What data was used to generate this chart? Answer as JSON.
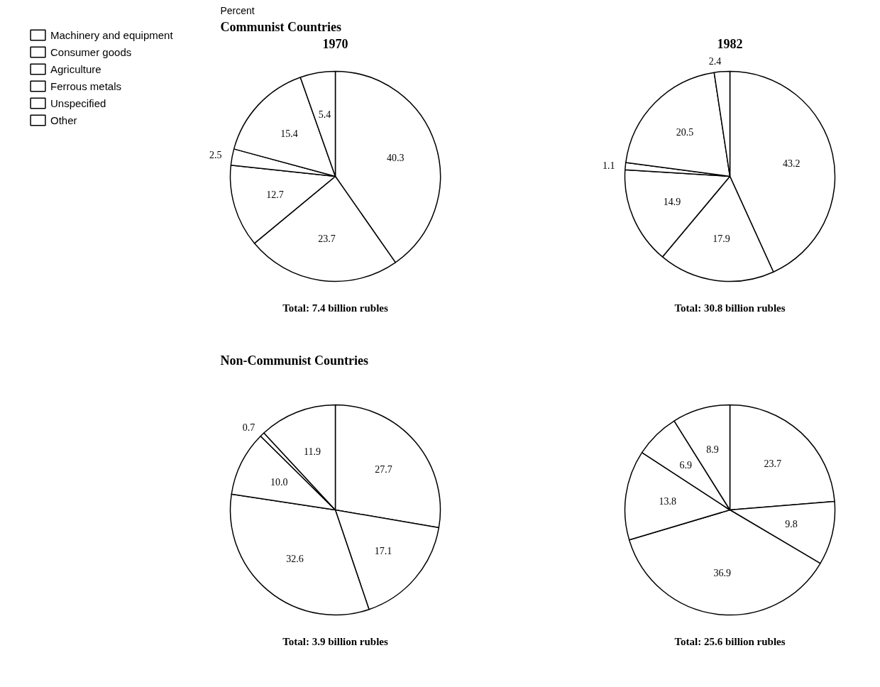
{
  "chart_data": [
    {
      "type": "pie",
      "title": "1970",
      "subtitle": "Communist Countries",
      "annotations": [
        "Percent",
        "Total: 7.4 billion rubles"
      ],
      "categories": [
        "Machinery and equipment",
        "Consumer goods",
        "Agriculture",
        "Ferrous metals",
        "Unspecified",
        "Other"
      ],
      "values": [
        40.3,
        23.7,
        12.7,
        2.5,
        15.4,
        5.4
      ],
      "colors": [
        "#ffffff",
        "#ffffff",
        "#ffffff",
        "#ffffff",
        "#ffffff",
        "#ffffff"
      ],
      "data_labels": true,
      "legend": "left"
    },
    {
      "type": "pie",
      "title": "1982",
      "annotations": [
        "Total: 30.8 billion rubles"
      ],
      "values": [
        43.2,
        17.9,
        14.9,
        1.1,
        20.5,
        2.4
      ],
      "colors": [
        "#ffffff",
        "#ffffff",
        "#ffffff",
        "#ffffff",
        "#ffffff",
        "#ffffff"
      ],
      "data_labels": true
    },
    {
      "type": "pie",
      "subtitle": "Non-Communist Countries",
      "annotations": [
        "Total: 3.9 billion rubles"
      ],
      "values": [
        27.7,
        17.1,
        32.6,
        10.0,
        0.7,
        11.9
      ],
      "value_labels": [
        "27.7",
        "17.1",
        "32.6",
        "10.0",
        "0.7",
        "11.9"
      ],
      "colors": [
        "#ffffff",
        "#ffffff",
        "#ffffff",
        "#ffffff",
        "#ffffff",
        "#ffffff"
      ]
    },
    {
      "type": "pie",
      "annotations": [
        "Total: 25.6 billion rubles"
      ],
      "values": [
        23.7,
        9.8,
        36.9,
        13.8,
        6.9,
        8.9
      ],
      "colors": [
        "#ffffff",
        "#ffffff",
        "#ffffff",
        "#ffffff",
        "#ffffff",
        "#ffffff"
      ],
      "data_labels": true
    }
  ]
}
